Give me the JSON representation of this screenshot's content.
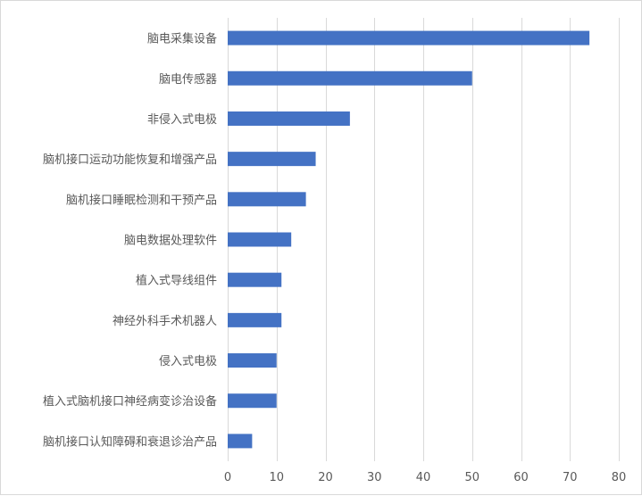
{
  "chart_data": {
    "type": "bar",
    "orientation": "horizontal",
    "title": "",
    "xlabel": "",
    "ylabel": "",
    "categories": [
      "脑电采集设备",
      "脑电传感器",
      "非侵入式电极",
      "脑机接口运动功能恢复和增强产品",
      "脑机接口睡眠检测和干预产品",
      "脑电数据处理软件",
      "植入式导线组件",
      "神经外科手术机器人",
      "侵入式电极",
      "植入式脑机接口神经病变诊治设备",
      "脑机接口认知障碍和衰退诊治产品"
    ],
    "values": [
      74,
      50,
      25,
      18,
      16,
      13,
      11,
      11,
      10,
      10,
      5
    ],
    "xlim": [
      0,
      80
    ],
    "xticks": [
      0,
      10,
      20,
      30,
      40,
      50,
      60,
      70,
      80
    ],
    "grid": "vertical",
    "legend": "none",
    "bar_color": "#4472c4",
    "grid_color": "#d9d9d9",
    "text_color": "#595959"
  }
}
